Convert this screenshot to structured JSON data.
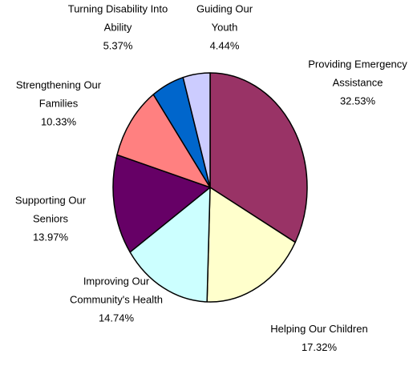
{
  "chart_data": {
    "type": "pie",
    "title": "",
    "slices": [
      {
        "lines": [
          "Providing Emergency",
          "Assistance"
        ],
        "pct_label": "32.53%",
        "value": 32.53,
        "color": "#993366"
      },
      {
        "lines": [
          "Helping Our Children"
        ],
        "pct_label": "17.32%",
        "value": 17.32,
        "color": "#ffffcc"
      },
      {
        "lines": [
          "Improving Our",
          "Community's Health"
        ],
        "pct_label": "14.74%",
        "value": 14.74,
        "color": "#ccffff"
      },
      {
        "lines": [
          "Supporting Our",
          "Seniors"
        ],
        "pct_label": "13.97%",
        "value": 13.97,
        "color": "#660066"
      },
      {
        "lines": [
          "Strengthening Our",
          "Families"
        ],
        "pct_label": "10.33%",
        "value": 10.33,
        "color": "#ff8080"
      },
      {
        "lines": [
          "Turning Disability Into",
          "Ability"
        ],
        "pct_label": "5.37%",
        "value": 5.37,
        "color": "#0066cc"
      },
      {
        "lines": [
          "Guiding Our",
          "Youth"
        ],
        "pct_label": "4.44%",
        "value": 4.44,
        "color": "#ccccff"
      }
    ]
  }
}
